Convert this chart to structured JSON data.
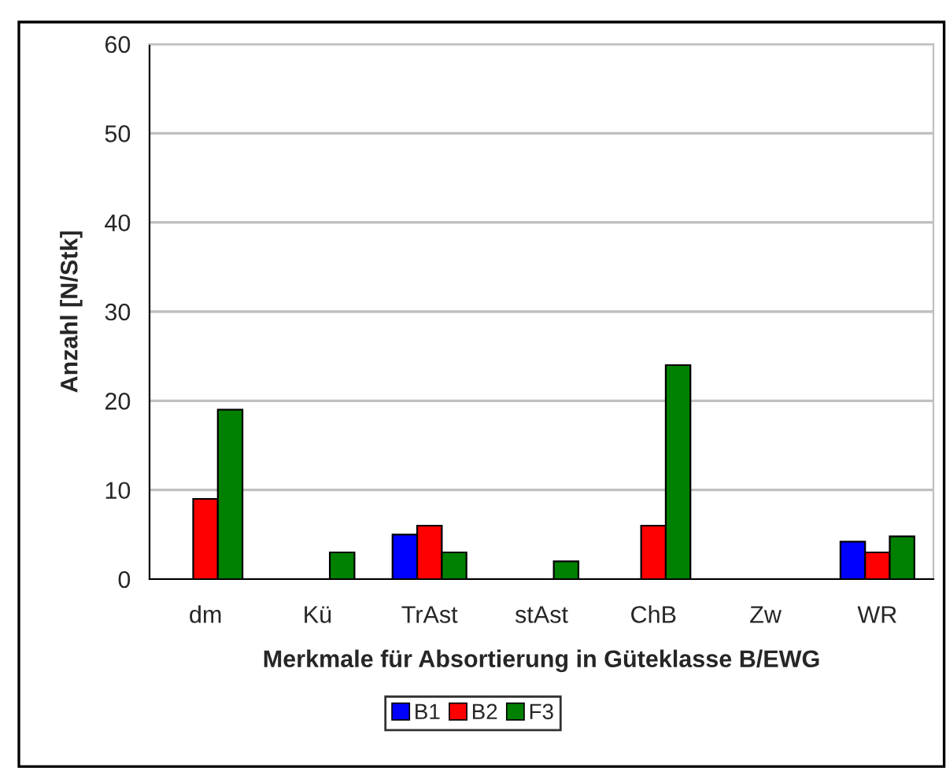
{
  "chart_data": {
    "type": "bar",
    "xlabel": "Merkmale für Absortierung in Güteklasse B/EWG",
    "ylabel": "Anzahl [N/Stk]",
    "categories": [
      "dm",
      "Kü",
      "TrAst",
      "stAst",
      "ChB",
      "Zw",
      "WR"
    ],
    "series": [
      {
        "name": "B1",
        "color": "#0000ff",
        "values": [
          null,
          null,
          5,
          null,
          null,
          null,
          4.2
        ]
      },
      {
        "name": "B2",
        "color": "#ff0000",
        "values": [
          9,
          null,
          6,
          null,
          6,
          null,
          3
        ]
      },
      {
        "name": "F3",
        "color": "#008000",
        "values": [
          19,
          3,
          3,
          2,
          24,
          null,
          4.8
        ]
      }
    ],
    "ylim": [
      0,
      60
    ],
    "yticks": [
      0,
      10,
      20,
      30,
      40,
      50,
      60
    ],
    "grid": "y",
    "legend": "bottom"
  }
}
